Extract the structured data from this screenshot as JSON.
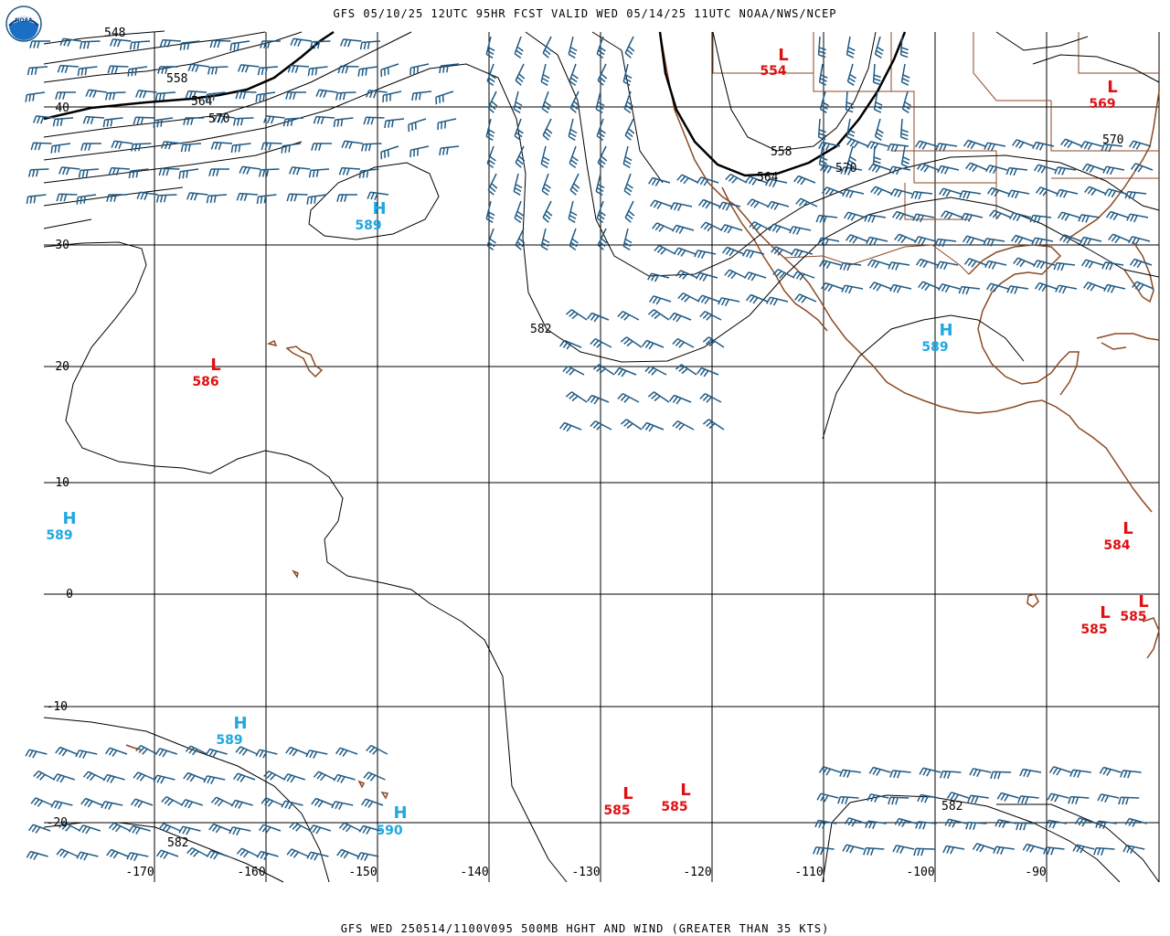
{
  "header": {
    "title": "GFS 05/10/25 12UTC 95HR FCST VALID WED 05/14/25 11UTC NOAA/NWS/NCEP"
  },
  "footer": {
    "caption": "GFS WED 250514/1100V095 500MB HGHT AND WIND (GREATER THAN 35 KTS)"
  },
  "logo": {
    "text": "NOAA"
  },
  "colors": {
    "contour": "#000000",
    "barb": "#1f5a85",
    "coast": "#8b4a24",
    "high": "#1ea8e0",
    "low": "#e01010"
  },
  "lat_labels": [
    "40",
    "30",
    "20",
    "10",
    "0",
    "-10",
    "-20"
  ],
  "lon_labels": [
    "-170",
    "-160",
    "-150",
    "-140",
    "-130",
    "-120",
    "-110",
    "-100",
    "-90"
  ],
  "contour_labels": [
    "548",
    "558",
    "564",
    "570",
    "582",
    "558",
    "564",
    "570",
    "570",
    "582",
    "582"
  ],
  "highs": [
    {
      "symbol": "H",
      "value": "589"
    },
    {
      "symbol": "H",
      "value": "589"
    },
    {
      "symbol": "H",
      "value": "589"
    },
    {
      "symbol": "H",
      "value": "589"
    },
    {
      "symbol": "H",
      "value": "590"
    }
  ],
  "lows": [
    {
      "symbol": "L",
      "value": "554"
    },
    {
      "symbol": "L",
      "value": "569"
    },
    {
      "symbol": "L",
      "value": "586"
    },
    {
      "symbol": "L",
      "value": "584"
    },
    {
      "symbol": "L",
      "value": "585"
    },
    {
      "symbol": "L",
      "value": "585"
    },
    {
      "symbol": "L",
      "value": "585"
    },
    {
      "symbol": "L",
      "value": "585"
    }
  ]
}
